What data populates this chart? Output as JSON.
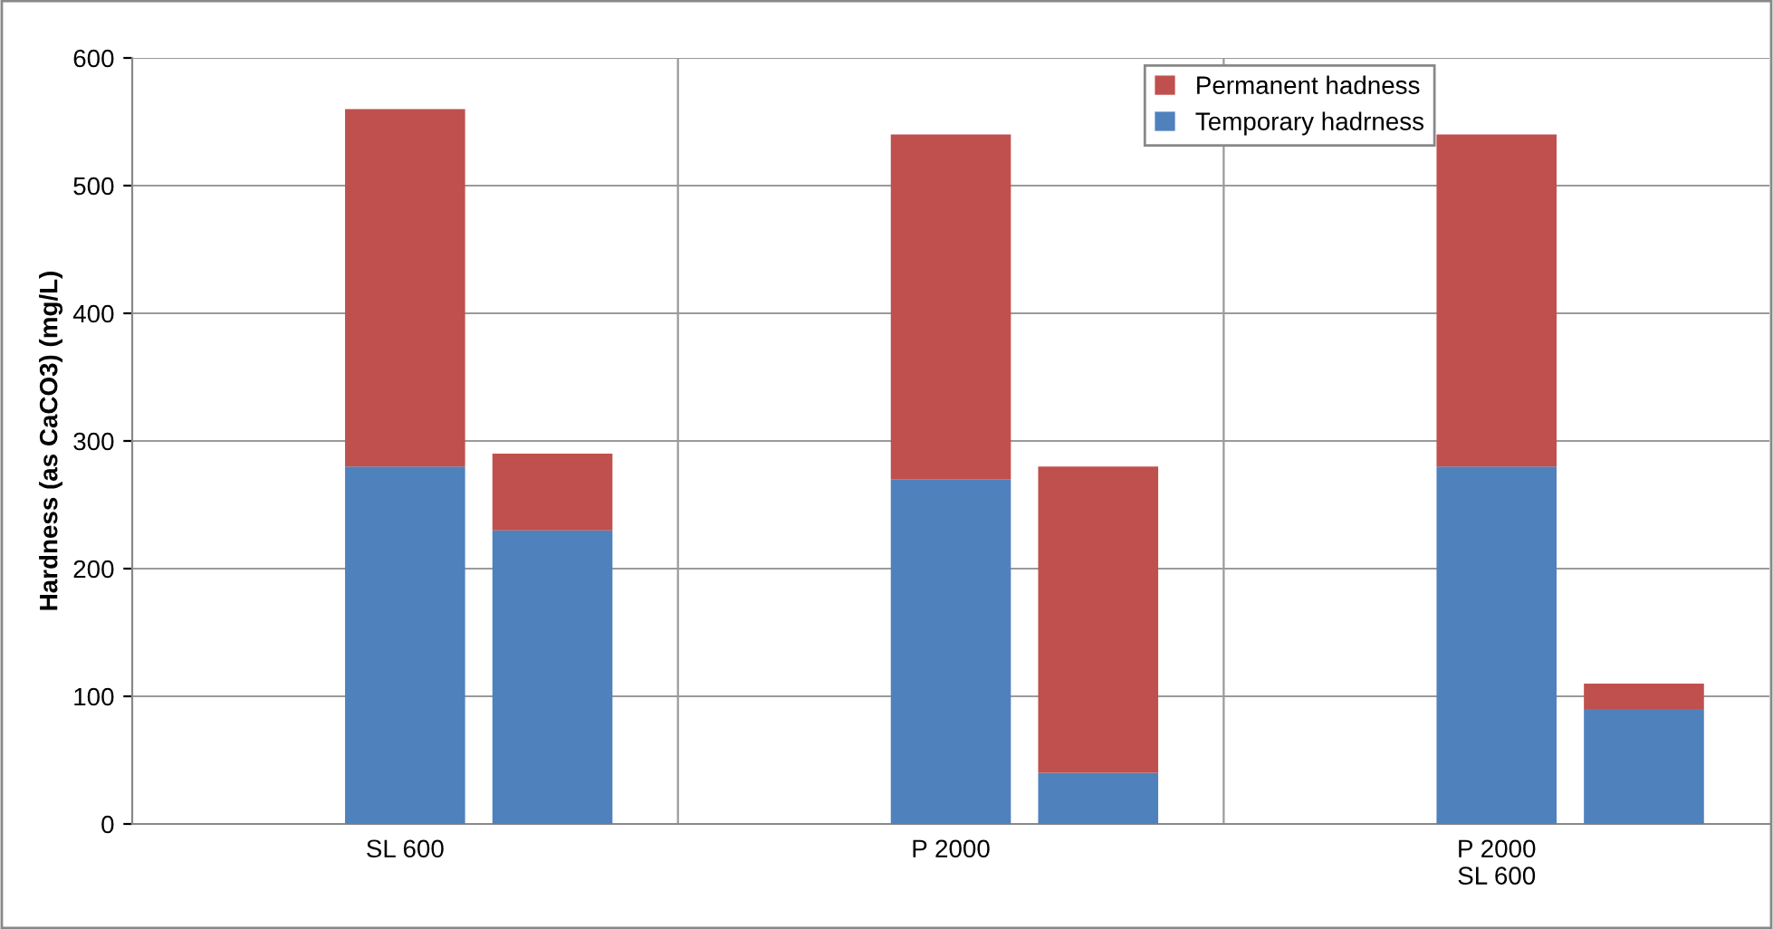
{
  "chart_data": {
    "type": "bar",
    "stacked": true,
    "ylabel": "Hardness (as CaCO3) (mg/L)",
    "categories": [
      "SL 600",
      null,
      "P 2000",
      null,
      "P 2000\nSL 600",
      null
    ],
    "series": [
      {
        "name": "Temporary hadrness",
        "color": "#4f81bd",
        "values": [
          280,
          230,
          270,
          40,
          280,
          90
        ]
      },
      {
        "name": "Permanent hadness",
        "color": "#c0504d",
        "values": [
          280,
          60,
          270,
          240,
          260,
          20
        ]
      }
    ],
    "ylim": [
      0,
      600
    ],
    "yticks": [
      0,
      100,
      200,
      300,
      400,
      500,
      600
    ],
    "grid": true,
    "legend": "top right"
  }
}
